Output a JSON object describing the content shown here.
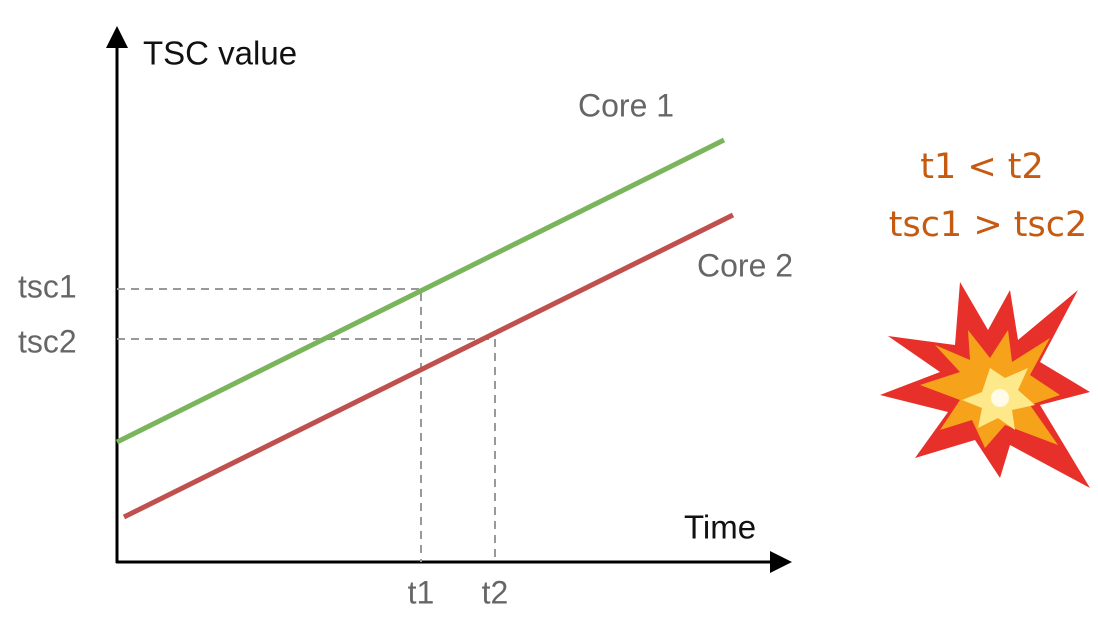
{
  "axes": {
    "y_label": "TSC value",
    "x_label": "Time"
  },
  "lines": [
    {
      "label": "Core 1"
    },
    {
      "label": "Core 2"
    }
  ],
  "markers": {
    "y": [
      "tsc1",
      "tsc2"
    ],
    "x": [
      "t1",
      "t2"
    ]
  },
  "note": {
    "lines": [
      "t1 < t2",
      "tsc1 > tsc2"
    ]
  }
}
